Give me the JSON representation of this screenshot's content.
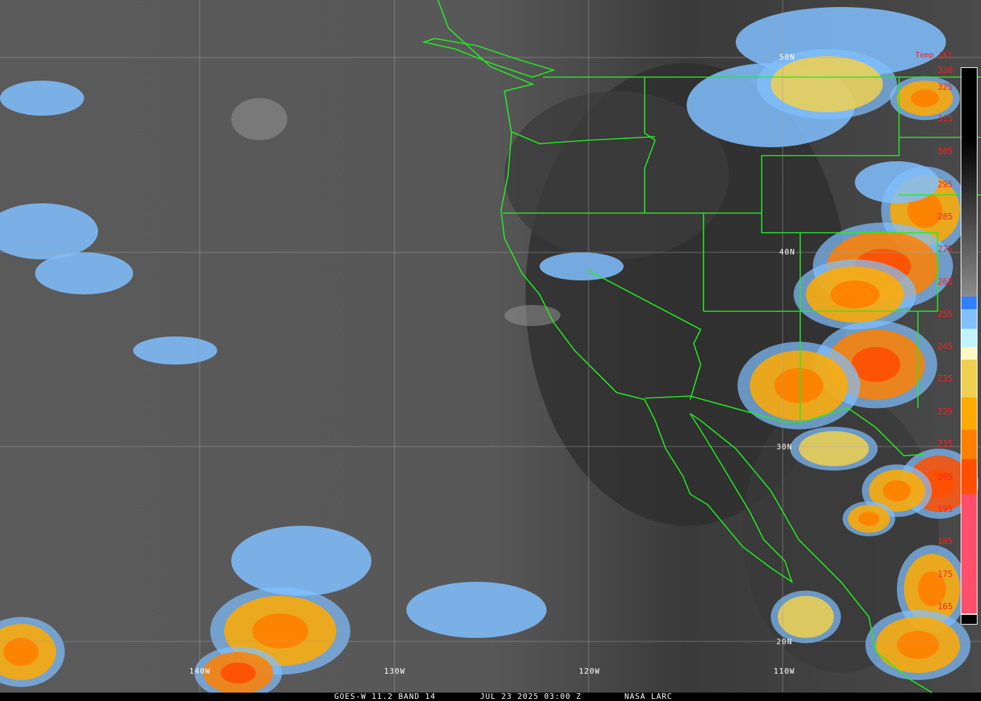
{
  "caption": {
    "satellite": "GOES-W 11.2 BAND 14",
    "datetime": "JUL 23 2025 03:00 Z",
    "credit": "NASA LARC"
  },
  "grid": {
    "latitudes": [
      "50N",
      "40N",
      "30N",
      "20N"
    ],
    "longitudes": [
      "140W",
      "130W",
      "120W",
      "110W"
    ]
  },
  "legend": {
    "title": "Temp [K]",
    "ticks": [
      "330",
      "325",
      "315",
      "305",
      "295",
      "285",
      "275",
      "265",
      "255",
      "245",
      "235",
      "225",
      "215",
      "205",
      "195",
      "185",
      "175",
      "165"
    ],
    "colors": {
      "cold_pink": "#ff4f6a",
      "red_orange": "#ff4f00",
      "orange": "#ff8000",
      "orange_yellow": "#ffaa00",
      "yellow": "#f0d050",
      "pale_yellow": "#fff8c0",
      "light_cyan": "#c0f4ff",
      "light_blue": "#80c0ff",
      "blue": "#3080ff",
      "warm_black": "#000000"
    }
  },
  "map_colors": {
    "borders": "#22ee22",
    "gridlines": "#a0a0a0"
  }
}
